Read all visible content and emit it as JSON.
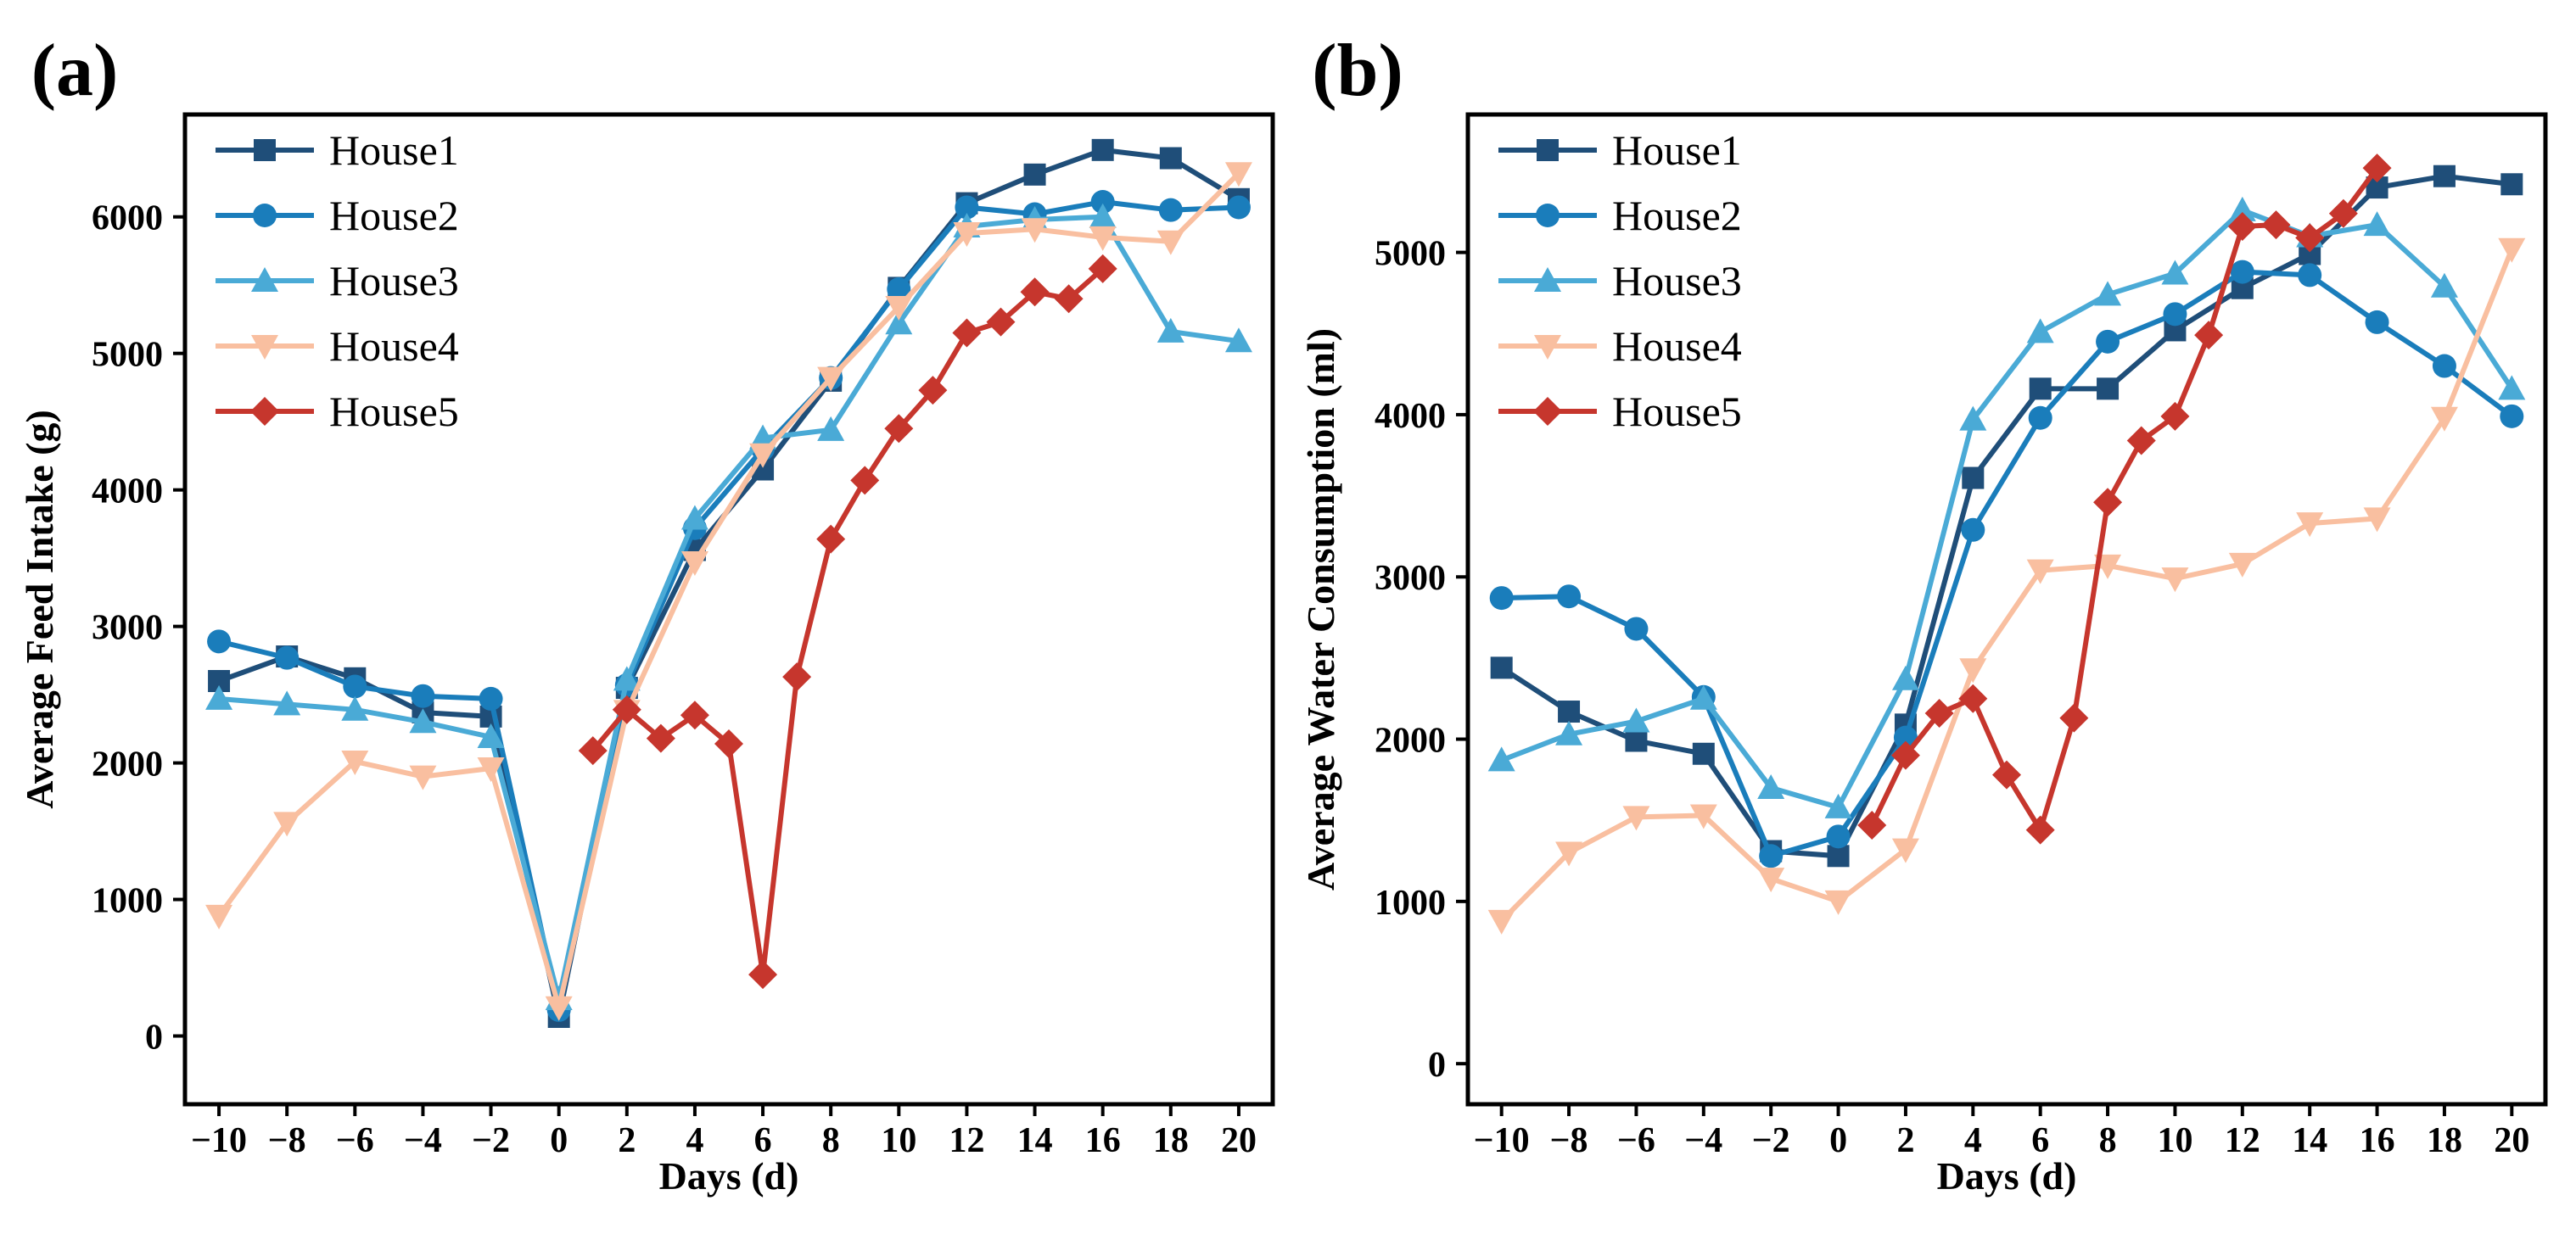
{
  "colors": {
    "House1": "#1f4e79",
    "House2": "#1a7dbb",
    "House3": "#4aaad6",
    "House4": "#f9bfa0",
    "House5": "#c6362d"
  },
  "chart_data": [
    {
      "type": "line",
      "panel_label": "(a)",
      "xlabel": "Days (d)",
      "ylabel": "Average Feed Intake (g)",
      "xlim": [
        -11,
        21
      ],
      "ylim": [
        -500,
        6750
      ],
      "xticks": [
        -10,
        -8,
        -6,
        -4,
        -2,
        0,
        2,
        4,
        6,
        8,
        10,
        12,
        14,
        16,
        18,
        20
      ],
      "xtick_labels": [
        "−10",
        "−8",
        "−6",
        "−4",
        "−2",
        "0",
        "2",
        "4",
        "6",
        "8",
        "10",
        "12",
        "14",
        "16",
        "18",
        "20"
      ],
      "yticks": [
        0,
        1000,
        2000,
        3000,
        4000,
        5000,
        6000
      ],
      "ytick_labels": [
        "0",
        "1000",
        "2000",
        "3000",
        "4000",
        "5000",
        "6000"
      ],
      "legend_position": "top-left",
      "series": [
        {
          "name": "House1",
          "marker": "square",
          "x": [
            -10,
            -8,
            -6,
            -4,
            -2,
            0,
            2,
            4,
            6,
            8,
            10,
            12,
            14,
            16,
            18,
            20
          ],
          "y": [
            2600,
            2780,
            2620,
            2370,
            2340,
            140,
            2550,
            3560,
            4150,
            4800,
            5480,
            6100,
            6310,
            6490,
            6430,
            6130
          ]
        },
        {
          "name": "House2",
          "marker": "circle",
          "x": [
            -10,
            -8,
            -6,
            -4,
            -2,
            0,
            2,
            4,
            6,
            8,
            10,
            12,
            14,
            16,
            18,
            20
          ],
          "y": [
            2890,
            2770,
            2560,
            2490,
            2470,
            190,
            2570,
            3720,
            4300,
            4820,
            5470,
            6070,
            6020,
            6110,
            6050,
            6070
          ]
        },
        {
          "name": "House3",
          "marker": "triangle-up",
          "x": [
            -10,
            -8,
            -6,
            -4,
            -2,
            0,
            2,
            4,
            6,
            8,
            10,
            12,
            14,
            16,
            18,
            20
          ],
          "y": [
            2470,
            2430,
            2390,
            2300,
            2190,
            270,
            2610,
            3790,
            4380,
            4440,
            5220,
            5930,
            5980,
            6000,
            5160,
            5090
          ]
        },
        {
          "name": "House4",
          "marker": "triangle-down",
          "x": [
            -10,
            -8,
            -6,
            -4,
            -2,
            0,
            2,
            4,
            6,
            8,
            10,
            12,
            14,
            16,
            18,
            20
          ],
          "y": [
            880,
            1560,
            2010,
            1900,
            1960,
            210,
            2380,
            3470,
            4260,
            4820,
            5340,
            5880,
            5910,
            5850,
            5820,
            6320
          ]
        },
        {
          "name": "House5",
          "marker": "diamond",
          "x": [
            1,
            2,
            3,
            4,
            5,
            6,
            7,
            8,
            9,
            10,
            11,
            12,
            13,
            14,
            15,
            16
          ],
          "y": [
            2090,
            2390,
            2180,
            2350,
            2140,
            450,
            2630,
            3640,
            4070,
            4450,
            4730,
            5150,
            5230,
            5450,
            5400,
            5620
          ]
        }
      ]
    },
    {
      "type": "line",
      "panel_label": "(b)",
      "xlabel": "Days (d)",
      "ylabel": "Average Water Consumption (ml)",
      "xlim": [
        -11,
        21
      ],
      "ylim": [
        -250,
        5850
      ],
      "xticks": [
        -10,
        -8,
        -6,
        -4,
        -2,
        0,
        2,
        4,
        6,
        8,
        10,
        12,
        14,
        16,
        18,
        20
      ],
      "xtick_labels": [
        "−10",
        "−8",
        "−6",
        "−4",
        "−2",
        "0",
        "2",
        "4",
        "6",
        "8",
        "10",
        "12",
        "14",
        "16",
        "18",
        "20"
      ],
      "yticks": [
        0,
        1000,
        2000,
        3000,
        4000,
        5000
      ],
      "ytick_labels": [
        "0",
        "1000",
        "2000",
        "3000",
        "4000",
        "5000"
      ],
      "legend_position": "top-left",
      "series": [
        {
          "name": "House1",
          "marker": "square",
          "x": [
            -10,
            -8,
            -6,
            -4,
            -2,
            0,
            2,
            4,
            6,
            8,
            10,
            12,
            14,
            16,
            18,
            20
          ],
          "y": [
            2440,
            2170,
            1990,
            1910,
            1310,
            1280,
            2090,
            3610,
            4160,
            4160,
            4520,
            4780,
            4990,
            5400,
            5470,
            5420
          ]
        },
        {
          "name": "House2",
          "marker": "circle",
          "x": [
            -10,
            -8,
            -6,
            -4,
            -2,
            0,
            2,
            4,
            6,
            8,
            10,
            12,
            14,
            16,
            18,
            20
          ],
          "y": [
            2870,
            2880,
            2680,
            2260,
            1280,
            1400,
            2010,
            3290,
            3980,
            4450,
            4620,
            4880,
            4860,
            4570,
            4300,
            3990
          ]
        },
        {
          "name": "House3",
          "marker": "triangle-up",
          "x": [
            -10,
            -8,
            -6,
            -4,
            -2,
            0,
            2,
            4,
            6,
            8,
            10,
            12,
            14,
            16,
            18,
            20
          ],
          "y": [
            1870,
            2030,
            2110,
            2250,
            1700,
            1580,
            2370,
            3970,
            4510,
            4740,
            4870,
            5260,
            5100,
            5170,
            4790,
            4160
          ]
        },
        {
          "name": "House4",
          "marker": "triangle-down",
          "x": [
            -10,
            -8,
            -6,
            -4,
            -2,
            0,
            2,
            4,
            6,
            8,
            10,
            12,
            14,
            16,
            18,
            20
          ],
          "y": [
            880,
            1300,
            1520,
            1530,
            1140,
            1000,
            1320,
            2430,
            3040,
            3070,
            2990,
            3080,
            3330,
            3360,
            3980,
            5020
          ]
        },
        {
          "name": "House5",
          "marker": "diamond",
          "x": [
            1,
            2,
            3,
            4,
            5,
            6,
            7,
            8,
            9,
            10,
            11,
            12,
            13,
            14,
            15,
            16
          ],
          "y": [
            1470,
            1900,
            2160,
            2250,
            1780,
            1440,
            2130,
            3460,
            3840,
            3990,
            4490,
            5160,
            5170,
            5090,
            5240,
            5520
          ]
        }
      ]
    }
  ]
}
